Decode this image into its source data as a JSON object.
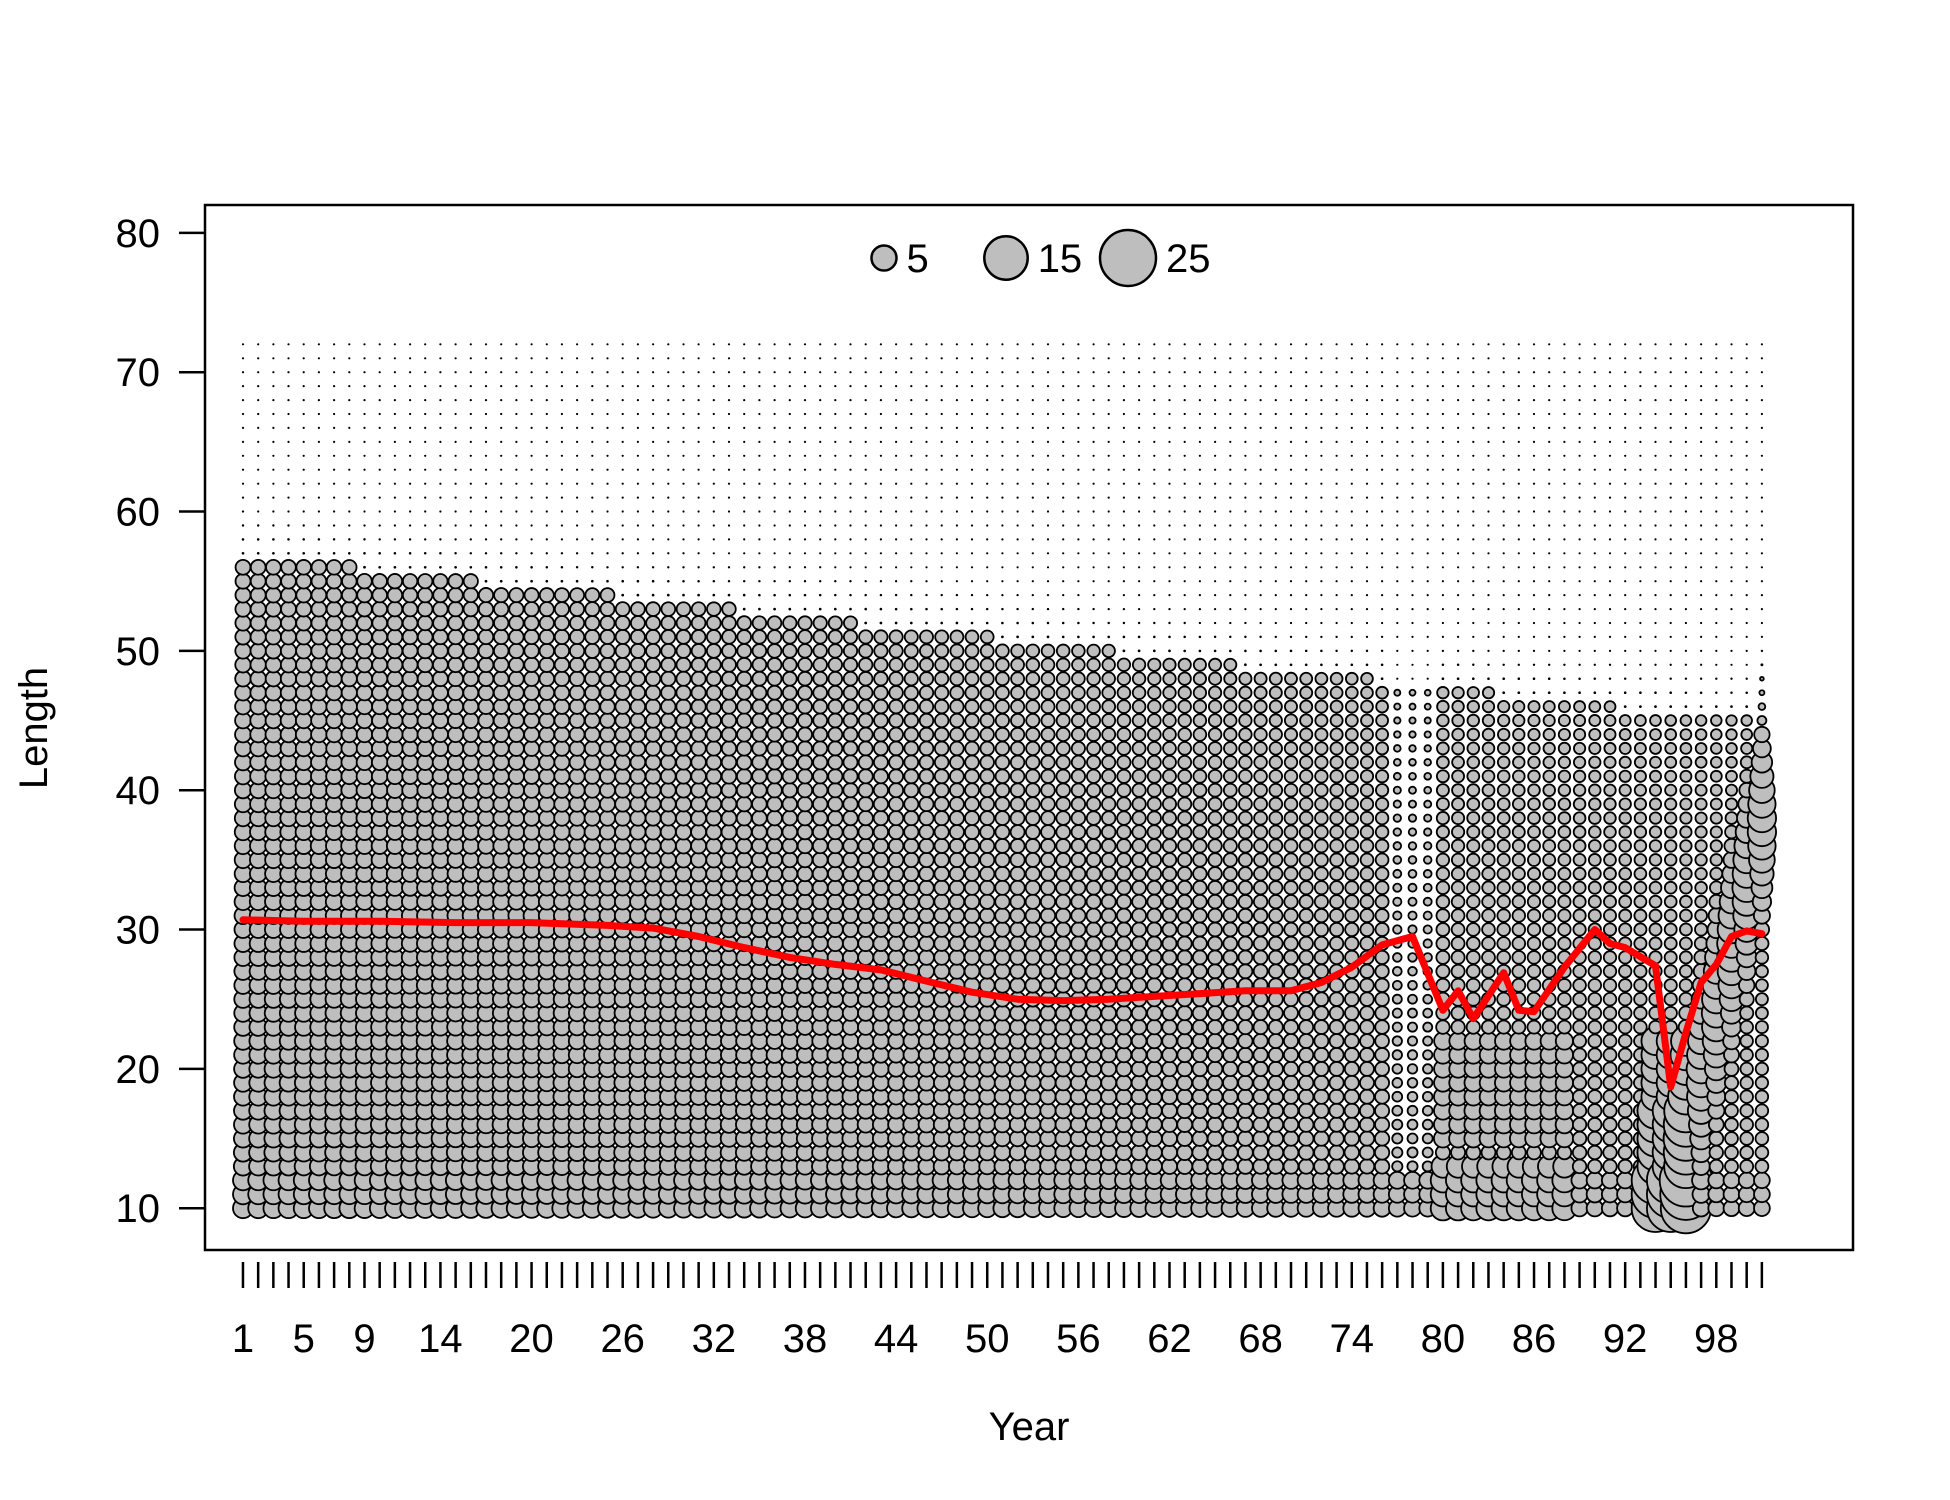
{
  "chart_data": {
    "type": "scatter",
    "subtype": "bubble",
    "xlabel": "Year",
    "ylabel": "Length",
    "xlim": [
      -1.5,
      107
    ],
    "ylim": [
      7,
      82
    ],
    "x_tick_labels": [
      1,
      5,
      9,
      14,
      20,
      26,
      32,
      38,
      44,
      50,
      56,
      62,
      68,
      74,
      80,
      86,
      92,
      98
    ],
    "x_minor_ticks_every": 1,
    "x_minor_ticks_from": 1,
    "x_minor_ticks_to": 101,
    "y_ticks": [
      10,
      20,
      30,
      40,
      50,
      60,
      70,
      80
    ],
    "grid": false,
    "legend": {
      "placement": "top-center",
      "entries": [
        {
          "label": "5",
          "value": 5
        },
        {
          "label": "15",
          "value": 15
        },
        {
          "label": "25",
          "value": 25
        }
      ]
    },
    "bubbles": {
      "x_range": [
        1,
        101
      ],
      "length_range": [
        10,
        72
      ],
      "length_step": 1,
      "fill_color": "#bebebe",
      "edge_color": "#000000",
      "description_of_pattern": "bubble size decreases with length; near-zero above ~57; anomalous large bubbles near year 95"
    },
    "series": [
      {
        "type": "line",
        "color": "#ff0000",
        "x": [
          1,
          5,
          10,
          15,
          20,
          25,
          28,
          31,
          34,
          37,
          40,
          43,
          46,
          49,
          52,
          55,
          58,
          61,
          64,
          67,
          70,
          72,
          74,
          76,
          78,
          80,
          81,
          82,
          84,
          85,
          86,
          88,
          90,
          91,
          92,
          94,
          95,
          96,
          97,
          98,
          99,
          100,
          101
        ],
        "y": [
          30.7,
          30.6,
          30.6,
          30.5,
          30.5,
          30.3,
          30.1,
          29.5,
          28.7,
          28.0,
          27.5,
          27.1,
          26.3,
          25.5,
          25.0,
          24.9,
          25.0,
          25.2,
          25.4,
          25.6,
          25.6,
          26.2,
          27.3,
          28.9,
          29.5,
          24.2,
          25.6,
          23.6,
          26.9,
          24.2,
          24.1,
          27.3,
          30.0,
          29.0,
          28.7,
          27.4,
          18.7,
          22.6,
          26.2,
          27.5,
          29.5,
          29.9,
          29.7
        ]
      }
    ]
  }
}
